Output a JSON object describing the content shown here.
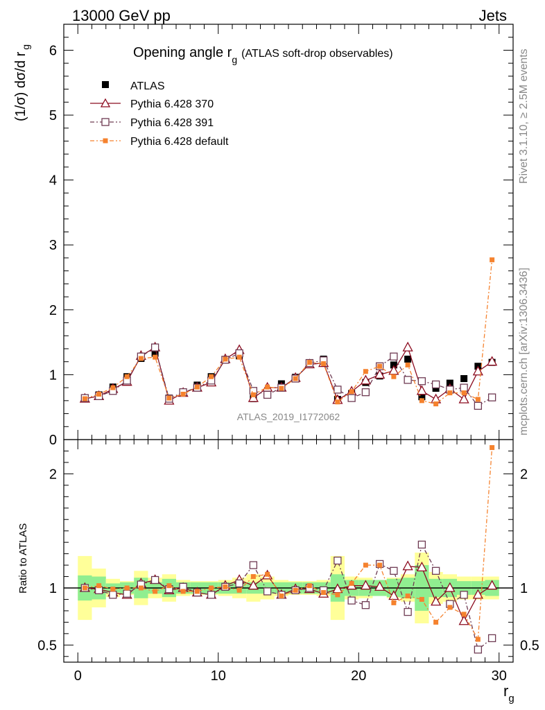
{
  "header": {
    "left": "13000 GeV pp",
    "right": "Jets"
  },
  "side_labels": {
    "rivet": "Rivet 3.1.10, ≥ 2.5M events",
    "mcplots": "mcplots.cern.ch [arXiv:1306.3436]"
  },
  "colors": {
    "atlas": "#000000",
    "py370": "#8b0a1e",
    "py391": "#6e3a52",
    "pydefault": "#f5822e",
    "band_green": "#90ee90",
    "band_yellow": "#ffff99"
  },
  "chart_data": [
    {
      "type": "scatter",
      "title": "Opening angle r",
      "title_sub": "g",
      "title_extra": "(ATLAS soft-drop observables)",
      "ylabel": "(1/σ) dσ/d r",
      "ylabel_sub": "g",
      "xlim": [
        -1,
        31
      ],
      "ylim": [
        0,
        6.4
      ],
      "yticks": [
        0,
        1,
        2,
        3,
        4,
        5,
        6
      ],
      "watermark": "ATLAS_2019_I1772062",
      "legend_position": "top-left",
      "x": [
        0.5,
        1.5,
        2.5,
        3.5,
        4.5,
        5.5,
        6.5,
        7.5,
        8.5,
        9.5,
        10.5,
        11.5,
        12.5,
        13.5,
        14.5,
        15.5,
        16.5,
        17.5,
        18.5,
        19.5,
        20.5,
        21.5,
        22.5,
        23.5,
        24.5,
        25.5,
        26.5,
        27.5,
        28.5,
        29.5
      ],
      "series": [
        {
          "name": "ATLAS",
          "marker": "square-filled",
          "values": [
            0.64,
            0.69,
            0.81,
            0.97,
            1.25,
            1.33,
            0.64,
            0.72,
            0.84,
            0.97,
            1.23,
            1.29,
            0.63,
            0.72,
            0.86,
            0.96,
            1.17,
            1.24,
            0.62,
            0.71,
            0.88,
            0.98,
            1.15,
            1.24,
            0.66,
            0.79,
            0.87,
            0.94,
            1.13,
            1.19
          ]
        },
        {
          "name": "Pythia 6.428 370",
          "marker": "triangle-open",
          "values": [
            0.63,
            0.67,
            0.78,
            0.89,
            1.29,
            1.42,
            0.6,
            0.72,
            0.8,
            0.88,
            1.24,
            1.38,
            0.64,
            0.8,
            0.8,
            0.95,
            1.16,
            1.18,
            0.61,
            0.74,
            0.91,
            1.0,
            1.06,
            1.42,
            0.75,
            0.62,
            0.78,
            0.62,
            1.05,
            1.2
          ]
        },
        {
          "name": "Pythia 6.428 391",
          "marker": "square-open",
          "values": [
            0.64,
            0.67,
            0.75,
            0.91,
            1.28,
            1.42,
            0.63,
            0.73,
            0.8,
            0.91,
            1.23,
            1.33,
            0.75,
            0.69,
            0.8,
            0.94,
            1.18,
            1.22,
            0.77,
            0.64,
            0.73,
            1.13,
            1.28,
            0.92,
            0.9,
            0.85,
            0.77,
            0.8,
            0.52,
            0.65
          ]
        },
        {
          "name": "Pythia 6.428 default",
          "marker": "square-small",
          "values": [
            0.63,
            0.7,
            0.8,
            0.97,
            1.25,
            1.27,
            0.64,
            0.7,
            0.81,
            0.97,
            1.24,
            1.27,
            0.69,
            0.81,
            0.79,
            0.94,
            1.19,
            1.17,
            0.58,
            0.74,
            1.05,
            1.13,
            0.97,
            1.15,
            0.6,
            0.55,
            0.72,
            0.72,
            0.62,
            2.77
          ]
        }
      ]
    },
    {
      "type": "scatter",
      "ylabel": "Ratio to ATLAS",
      "xlabel": "r",
      "xlabel_sub": "g",
      "xlim": [
        -1,
        31
      ],
      "ylim": [
        0.35,
        2.3
      ],
      "yticks": [
        0.5,
        1,
        2
      ],
      "xticks": [
        0,
        10,
        20,
        30
      ],
      "x": [
        0.5,
        1.5,
        2.5,
        3.5,
        4.5,
        5.5,
        6.5,
        7.5,
        8.5,
        9.5,
        10.5,
        11.5,
        12.5,
        13.5,
        14.5,
        15.5,
        16.5,
        17.5,
        18.5,
        19.5,
        20.5,
        21.5,
        22.5,
        23.5,
        24.5,
        25.5,
        26.5,
        27.5,
        28.5,
        29.5
      ],
      "band_inner": [
        0.11,
        0.1,
        0.04,
        0.05,
        0.09,
        0.05,
        0.08,
        0.05,
        0.05,
        0.05,
        0.05,
        0.05,
        0.05,
        0.05,
        0.05,
        0.05,
        0.05,
        0.05,
        0.12,
        0.07,
        0.07,
        0.07,
        0.08,
        0.09,
        0.2,
        0.08,
        0.08,
        0.06,
        0.06,
        0.07
      ],
      "band_outer": [
        0.28,
        0.17,
        0.08,
        0.06,
        0.15,
        0.09,
        0.12,
        0.07,
        0.06,
        0.06,
        0.07,
        0.09,
        0.12,
        0.1,
        0.07,
        0.06,
        0.06,
        0.07,
        0.28,
        0.1,
        0.09,
        0.07,
        0.09,
        0.12,
        0.31,
        0.14,
        0.12,
        0.1,
        0.1,
        0.1
      ],
      "series": [
        {
          "name": "Pythia 6.428 370",
          "marker": "triangle-open",
          "values": [
            1.0,
            0.99,
            0.96,
            0.94,
            1.04,
            1.07,
            0.98,
            1.0,
            0.96,
            0.94,
            1.02,
            1.07,
            1.02,
            1.11,
            0.94,
            0.99,
            0.99,
            0.95,
            0.99,
            1.02,
            1.02,
            1.01,
            0.93,
            1.19,
            1.18,
            0.88,
            1.0,
            0.71,
            0.94,
            1.02
          ]
        },
        {
          "name": "Pythia 6.428 391",
          "marker": "square-open",
          "values": [
            1.0,
            0.98,
            0.94,
            0.95,
            1.03,
            1.07,
            0.99,
            1.01,
            0.96,
            0.94,
            1.01,
            1.04,
            1.2,
            0.97,
            0.94,
            0.98,
            1.0,
            0.98,
            1.24,
            0.89,
            0.85,
            1.21,
            1.15,
            0.79,
            1.38,
            1.15,
            0.86,
            0.94,
            0.46,
            0.56
          ]
        },
        {
          "name": "Pythia 6.428 default",
          "marker": "square-small",
          "values": [
            1.0,
            1.02,
            0.99,
            1.0,
            1.0,
            0.97,
            1.02,
            0.97,
            0.97,
            1.0,
            1.01,
            0.98,
            1.1,
            1.12,
            0.93,
            0.98,
            1.02,
            0.96,
            0.94,
            1.04,
            1.2,
            1.2,
            0.87,
            0.93,
            0.9,
            0.7,
            0.83,
            0.77,
            0.55,
            2.23
          ]
        }
      ]
    }
  ]
}
